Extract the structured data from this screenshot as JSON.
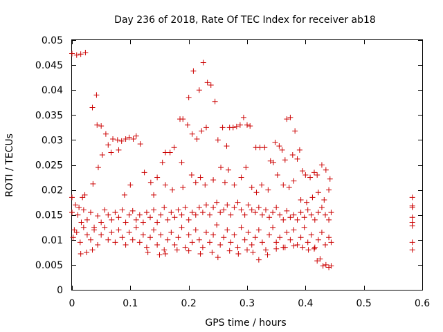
{
  "chart_data": {
    "type": "scatter",
    "title": "Day 236 of 2018, Rate Of TEC Index for receiver ab18",
    "xlabel": "GPS time / hours",
    "ylabel": "ROTI / TECUs",
    "xlim": [
      0,
      0.6
    ],
    "ylim": [
      0,
      0.05
    ],
    "xticks": [
      "0",
      "0.1",
      "0.2",
      "0.3",
      "0.4",
      "0.5",
      "0.6"
    ],
    "yticks": [
      "0",
      "0.005",
      "0.01",
      "0.015",
      "0.02",
      "0.025",
      "0.03",
      "0.035",
      "0.04",
      "0.045",
      "0.05"
    ],
    "grid": false,
    "legend": "none",
    "marker": "plus",
    "color": "#cc0000",
    "series": [
      {
        "name": "ab18",
        "points": [
          [
            0.0,
            0.0473
          ],
          [
            0.008,
            0.047
          ],
          [
            0.015,
            0.0472
          ],
          [
            0.023,
            0.0475
          ],
          [
            0.035,
            0.0365
          ],
          [
            0.042,
            0.039
          ],
          [
            0.043,
            0.033
          ],
          [
            0.05,
            0.0328
          ],
          [
            0.052,
            0.027
          ],
          [
            0.058,
            0.0312
          ],
          [
            0.062,
            0.029
          ],
          [
            0.067,
            0.0275
          ],
          [
            0.07,
            0.0302
          ],
          [
            0.078,
            0.03
          ],
          [
            0.08,
            0.028
          ],
          [
            0.085,
            0.0298
          ],
          [
            0.092,
            0.0302
          ],
          [
            0.098,
            0.0305
          ],
          [
            0.105,
            0.0302
          ],
          [
            0.11,
            0.0308
          ],
          [
            0.117,
            0.0292
          ],
          [
            0.045,
            0.0245
          ],
          [
            0.036,
            0.0212
          ],
          [
            0.124,
            0.0235
          ],
          [
            0.135,
            0.0215
          ],
          [
            0.146,
            0.0225
          ],
          [
            0.155,
            0.0255
          ],
          [
            0.16,
            0.0275
          ],
          [
            0.168,
            0.0275
          ],
          [
            0.175,
            0.0285
          ],
          [
            0.185,
            0.0342
          ],
          [
            0.19,
            0.0342
          ],
          [
            0.188,
            0.0255
          ],
          [
            0.198,
            0.033
          ],
          [
            0.2,
            0.0385
          ],
          [
            0.206,
            0.0312
          ],
          [
            0.208,
            0.0438
          ],
          [
            0.214,
            0.0302
          ],
          [
            0.218,
            0.04
          ],
          [
            0.225,
            0.0455
          ],
          [
            0.222,
            0.0318
          ],
          [
            0.23,
            0.0325
          ],
          [
            0.232,
            0.0415
          ],
          [
            0.238,
            0.041
          ],
          [
            0.245,
            0.0377
          ],
          [
            0.25,
            0.03
          ],
          [
            0.258,
            0.0325
          ],
          [
            0.265,
            0.0288
          ],
          [
            0.27,
            0.0325
          ],
          [
            0.276,
            0.0325
          ],
          [
            0.282,
            0.0327
          ],
          [
            0.288,
            0.033
          ],
          [
            0.294,
            0.0345
          ],
          [
            0.3,
            0.033
          ],
          [
            0.305,
            0.0328
          ],
          [
            0.315,
            0.0285
          ],
          [
            0.322,
            0.0285
          ],
          [
            0.33,
            0.0285
          ],
          [
            0.34,
            0.0258
          ],
          [
            0.345,
            0.0255
          ],
          [
            0.348,
            0.0295
          ],
          [
            0.355,
            0.0288
          ],
          [
            0.36,
            0.028
          ],
          [
            0.365,
            0.026
          ],
          [
            0.368,
            0.0342
          ],
          [
            0.374,
            0.0345
          ],
          [
            0.378,
            0.027
          ],
          [
            0.382,
            0.0318
          ],
          [
            0.386,
            0.0262
          ],
          [
            0.39,
            0.028
          ],
          [
            0.395,
            0.0238
          ],
          [
            0.4,
            0.023
          ],
          [
            0.408,
            0.0225
          ],
          [
            0.415,
            0.0235
          ],
          [
            0.42,
            0.023
          ],
          [
            0.428,
            0.025
          ],
          [
            0.435,
            0.024
          ],
          [
            0.442,
            0.0222
          ],
          [
            0.0,
            0.0185
          ],
          [
            0.006,
            0.017
          ],
          [
            0.012,
            0.0165
          ],
          [
            0.018,
            0.0185
          ],
          [
            0.022,
            0.019
          ],
          [
            0.09,
            0.019
          ],
          [
            0.1,
            0.021
          ],
          [
            0.14,
            0.019
          ],
          [
            0.16,
            0.021
          ],
          [
            0.172,
            0.02
          ],
          [
            0.19,
            0.0205
          ],
          [
            0.205,
            0.023
          ],
          [
            0.212,
            0.0215
          ],
          [
            0.22,
            0.0225
          ],
          [
            0.228,
            0.021
          ],
          [
            0.242,
            0.022
          ],
          [
            0.255,
            0.0245
          ],
          [
            0.262,
            0.0215
          ],
          [
            0.268,
            0.024
          ],
          [
            0.278,
            0.021
          ],
          [
            0.29,
            0.0225
          ],
          [
            0.298,
            0.0245
          ],
          [
            0.308,
            0.0205
          ],
          [
            0.316,
            0.0195
          ],
          [
            0.325,
            0.021
          ],
          [
            0.336,
            0.02
          ],
          [
            0.352,
            0.023
          ],
          [
            0.362,
            0.021
          ],
          [
            0.372,
            0.0205
          ],
          [
            0.38,
            0.0218
          ],
          [
            0.392,
            0.018
          ],
          [
            0.402,
            0.0175
          ],
          [
            0.412,
            0.0185
          ],
          [
            0.422,
            0.0195
          ],
          [
            0.432,
            0.018
          ],
          [
            0.44,
            0.02
          ],
          [
            0.0,
            0.0155
          ],
          [
            0.004,
            0.012
          ],
          [
            0.01,
            0.015
          ],
          [
            0.016,
            0.0135
          ],
          [
            0.02,
            0.016
          ],
          [
            0.026,
            0.014
          ],
          [
            0.032,
            0.0155
          ],
          [
            0.038,
            0.0125
          ],
          [
            0.044,
            0.0148
          ],
          [
            0.05,
            0.0135
          ],
          [
            0.056,
            0.016
          ],
          [
            0.062,
            0.015
          ],
          [
            0.068,
            0.014
          ],
          [
            0.074,
            0.0155
          ],
          [
            0.08,
            0.0145
          ],
          [
            0.086,
            0.016
          ],
          [
            0.092,
            0.0135
          ],
          [
            0.098,
            0.015
          ],
          [
            0.104,
            0.0158
          ],
          [
            0.11,
            0.014
          ],
          [
            0.116,
            0.015
          ],
          [
            0.122,
            0.0135
          ],
          [
            0.128,
            0.0155
          ],
          [
            0.134,
            0.0145
          ],
          [
            0.14,
            0.016
          ],
          [
            0.146,
            0.0135
          ],
          [
            0.152,
            0.015
          ],
          [
            0.158,
            0.0165
          ],
          [
            0.164,
            0.014
          ],
          [
            0.17,
            0.0155
          ],
          [
            0.176,
            0.0145
          ],
          [
            0.182,
            0.016
          ],
          [
            0.188,
            0.015
          ],
          [
            0.194,
            0.0165
          ],
          [
            0.2,
            0.014
          ],
          [
            0.206,
            0.0155
          ],
          [
            0.212,
            0.015
          ],
          [
            0.218,
            0.0165
          ],
          [
            0.224,
            0.0155
          ],
          [
            0.23,
            0.017
          ],
          [
            0.236,
            0.015
          ],
          [
            0.242,
            0.0165
          ],
          [
            0.248,
            0.0175
          ],
          [
            0.254,
            0.0155
          ],
          [
            0.26,
            0.016
          ],
          [
            0.266,
            0.017
          ],
          [
            0.272,
            0.015
          ],
          [
            0.278,
            0.0165
          ],
          [
            0.284,
            0.0175
          ],
          [
            0.29,
            0.016
          ],
          [
            0.296,
            0.015
          ],
          [
            0.302,
            0.017
          ],
          [
            0.308,
            0.016
          ],
          [
            0.314,
            0.0155
          ],
          [
            0.32,
            0.0165
          ],
          [
            0.326,
            0.015
          ],
          [
            0.332,
            0.016
          ],
          [
            0.338,
            0.0145
          ],
          [
            0.344,
            0.0155
          ],
          [
            0.35,
            0.0165
          ],
          [
            0.356,
            0.015
          ],
          [
            0.362,
            0.014
          ],
          [
            0.368,
            0.0158
          ],
          [
            0.374,
            0.0145
          ],
          [
            0.38,
            0.015
          ],
          [
            0.386,
            0.014
          ],
          [
            0.392,
            0.0155
          ],
          [
            0.398,
            0.0145
          ],
          [
            0.404,
            0.016
          ],
          [
            0.41,
            0.015
          ],
          [
            0.416,
            0.014
          ],
          [
            0.422,
            0.0155
          ],
          [
            0.428,
            0.0165
          ],
          [
            0.434,
            0.015
          ],
          [
            0.44,
            0.014
          ],
          [
            0.444,
            0.0155
          ],
          [
            0.002,
            0.0105
          ],
          [
            0.008,
            0.0115
          ],
          [
            0.014,
            0.0095
          ],
          [
            0.02,
            0.0125
          ],
          [
            0.026,
            0.011
          ],
          [
            0.032,
            0.01
          ],
          [
            0.038,
            0.012
          ],
          [
            0.044,
            0.009
          ],
          [
            0.05,
            0.011
          ],
          [
            0.056,
            0.0125
          ],
          [
            0.062,
            0.01
          ],
          [
            0.068,
            0.0115
          ],
          [
            0.074,
            0.0095
          ],
          [
            0.08,
            0.012
          ],
          [
            0.086,
            0.0105
          ],
          [
            0.092,
            0.009
          ],
          [
            0.098,
            0.0115
          ],
          [
            0.104,
            0.01
          ],
          [
            0.11,
            0.0125
          ],
          [
            0.116,
            0.0095
          ],
          [
            0.122,
            0.011
          ],
          [
            0.128,
            0.0085
          ],
          [
            0.134,
            0.0105
          ],
          [
            0.14,
            0.012
          ],
          [
            0.146,
            0.009
          ],
          [
            0.152,
            0.011
          ],
          [
            0.158,
            0.008
          ],
          [
            0.164,
            0.01
          ],
          [
            0.17,
            0.0115
          ],
          [
            0.176,
            0.009
          ],
          [
            0.182,
            0.0105
          ],
          [
            0.188,
            0.0125
          ],
          [
            0.194,
            0.0085
          ],
          [
            0.2,
            0.011
          ],
          [
            0.206,
            0.0095
          ],
          [
            0.212,
            0.012
          ],
          [
            0.218,
            0.01
          ],
          [
            0.224,
            0.0085
          ],
          [
            0.23,
            0.0115
          ],
          [
            0.236,
            0.0095
          ],
          [
            0.242,
            0.011
          ],
          [
            0.248,
            0.013
          ],
          [
            0.254,
            0.009
          ],
          [
            0.26,
            0.0105
          ],
          [
            0.266,
            0.012
          ],
          [
            0.272,
            0.0095
          ],
          [
            0.278,
            0.011
          ],
          [
            0.284,
            0.0085
          ],
          [
            0.29,
            0.0125
          ],
          [
            0.296,
            0.01
          ],
          [
            0.302,
            0.0115
          ],
          [
            0.308,
            0.009
          ],
          [
            0.314,
            0.0105
          ],
          [
            0.32,
            0.012
          ],
          [
            0.326,
            0.0095
          ],
          [
            0.332,
            0.008
          ],
          [
            0.338,
            0.011
          ],
          [
            0.344,
            0.0125
          ],
          [
            0.35,
            0.0095
          ],
          [
            0.356,
            0.0105
          ],
          [
            0.362,
            0.0085
          ],
          [
            0.368,
            0.0115
          ],
          [
            0.374,
            0.01
          ],
          [
            0.38,
            0.012
          ],
          [
            0.386,
            0.009
          ],
          [
            0.392,
            0.0105
          ],
          [
            0.398,
            0.0125
          ],
          [
            0.404,
            0.0095
          ],
          [
            0.41,
            0.011
          ],
          [
            0.416,
            0.0085
          ],
          [
            0.422,
            0.01
          ],
          [
            0.428,
            0.0115
          ],
          [
            0.434,
            0.009
          ],
          [
            0.44,
            0.0105
          ],
          [
            0.444,
            0.0095
          ],
          [
            0.015,
            0.0072
          ],
          [
            0.025,
            0.0075
          ],
          [
            0.035,
            0.008
          ],
          [
            0.13,
            0.0075
          ],
          [
            0.15,
            0.007
          ],
          [
            0.16,
            0.0072
          ],
          [
            0.18,
            0.008
          ],
          [
            0.2,
            0.0078
          ],
          [
            0.22,
            0.0072
          ],
          [
            0.24,
            0.0075
          ],
          [
            0.25,
            0.0065
          ],
          [
            0.27,
            0.0078
          ],
          [
            0.285,
            0.0072
          ],
          [
            0.3,
            0.008
          ],
          [
            0.31,
            0.0075
          ],
          [
            0.32,
            0.006
          ],
          [
            0.335,
            0.007
          ],
          [
            0.35,
            0.0082
          ],
          [
            0.365,
            0.0085
          ],
          [
            0.38,
            0.0088
          ],
          [
            0.395,
            0.0085
          ],
          [
            0.405,
            0.008
          ],
          [
            0.415,
            0.0082
          ],
          [
            0.42,
            0.0058
          ],
          [
            0.425,
            0.0062
          ],
          [
            0.43,
            0.0048
          ],
          [
            0.435,
            0.005
          ],
          [
            0.44,
            0.0045
          ],
          [
            0.444,
            0.0048
          ],
          [
            0.583,
            0.0185
          ],
          [
            0.583,
            0.0168
          ],
          [
            0.583,
            0.0165
          ],
          [
            0.583,
            0.0145
          ],
          [
            0.583,
            0.0135
          ],
          [
            0.583,
            0.0128
          ],
          [
            0.583,
            0.0095
          ],
          [
            0.583,
            0.008
          ]
        ]
      }
    ]
  }
}
